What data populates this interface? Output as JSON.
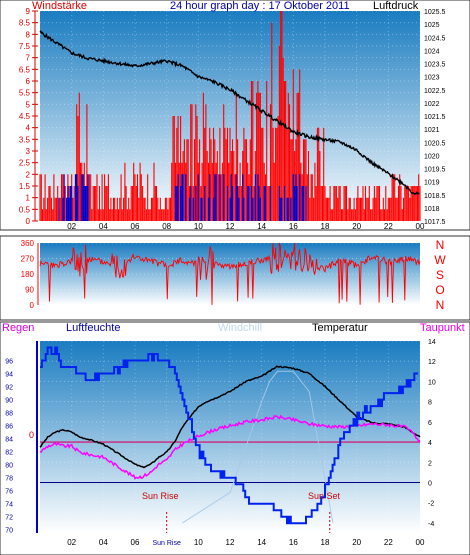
{
  "header": {
    "left_label": "Windstärke",
    "title": "24 hour graph day : 17 Oktober 2011",
    "right_label": "Luftdruck"
  },
  "middle": {
    "compass_labels": [
      "N",
      "W",
      "S",
      "O",
      "N"
    ]
  },
  "bottom_header": {
    "regen": "Regen",
    "luftfeuchte": "Luftfeuchte",
    "windchill": "Windchill",
    "temperatur": "Temperatur",
    "taupunkt": "Taupunkt"
  },
  "annotations": {
    "sun_rise": "Sun Rise",
    "sun_set": "Sun Set",
    "x_sun_rise_tick": "Sun Rise",
    "zero_left": "0"
  },
  "colors": {
    "wind_axis": "#e00000",
    "gust": "#ff0000",
    "wind_avg": "#0000cc",
    "pressure": "#000000",
    "direction": "#ff0000",
    "humidity": "#0022ee",
    "temperature": "#000000",
    "dewpoint": "#ff00ff",
    "windchill": "#a8c8e8",
    "bg_top": "#1a7cc0",
    "bg_bottom": "#ffffff",
    "title_blue": "#0000aa"
  },
  "chart_data": [
    {
      "type": "line",
      "title": "24 hour graph day : 17 Oktober 2011",
      "ylabel": "Windstärke",
      "ylabel_right": "Luftdruck",
      "x_ticks": [
        "02",
        "04",
        "06",
        "08",
        "10",
        "12",
        "14",
        "16",
        "18",
        "20",
        "22",
        "00"
      ],
      "y_ticks_left": [
        "0",
        "0.5",
        "1",
        "1.5",
        "2",
        "2.5",
        "3",
        "3.5",
        "4",
        "4.5",
        "5",
        "5.5",
        "6",
        "6.5",
        "7",
        "7.5",
        "8",
        "8.5",
        "9"
      ],
      "y_ticks_right": [
        "1017.5",
        "1018",
        "1018.5",
        "1019",
        "1019.5",
        "1020",
        "1020.5",
        "1021",
        "1021.5",
        "1022",
        "1022.5",
        "1023",
        "1023.5",
        "1024",
        "1024.5",
        "1025",
        "1025.5"
      ],
      "ylim_left": [
        0,
        9
      ],
      "ylim_right": [
        1017.5,
        1025.5
      ],
      "xlim": [
        0,
        24
      ],
      "series": [
        {
          "name": "Luftdruck",
          "axis": "right",
          "x": [
            0,
            1,
            2,
            3,
            4,
            5,
            6,
            7,
            8,
            9,
            10,
            11,
            12,
            13,
            14,
            15,
            16,
            17,
            18,
            19,
            20,
            21,
            22,
            23,
            23.5,
            24
          ],
          "values": [
            1024.7,
            1024.3,
            1023.9,
            1023.7,
            1023.6,
            1023.5,
            1023.4,
            1023.5,
            1023.6,
            1023.4,
            1023.0,
            1022.8,
            1022.5,
            1022.1,
            1021.7,
            1021.3,
            1020.9,
            1020.7,
            1020.6,
            1020.5,
            1020.2,
            1019.7,
            1019.3,
            1018.9,
            1018.6,
            1018.5
          ]
        }
      ]
    },
    {
      "type": "line",
      "ylabel": "",
      "y_ticks": [
        "0",
        "90",
        "180",
        "270",
        "360"
      ],
      "ylim": [
        0,
        360
      ],
      "xlim": [
        0,
        24
      ],
      "series": [
        {
          "x": [
            0,
            1,
            2,
            2.5,
            3,
            4,
            5,
            6,
            7,
            8,
            9,
            10,
            11,
            12,
            13,
            14,
            15,
            15.5,
            16,
            17,
            18,
            19,
            20,
            21,
            22,
            23,
            24
          ],
          "values": [
            240,
            230,
            250,
            225,
            270,
            250,
            240,
            280,
            255,
            230,
            260,
            240,
            250,
            220,
            245,
            260,
            290,
            250,
            310,
            240,
            210,
            260,
            230,
            280,
            250,
            270,
            250
          ]
        }
      ]
    },
    {
      "type": "line",
      "y_ticks_left": [
        "70",
        "72",
        "74",
        "76",
        "78",
        "80",
        "82",
        "84",
        "86",
        "88",
        "90",
        "92",
        "94",
        "96"
      ],
      "y_ticks_right": [
        "-4",
        "-2",
        "0",
        "2",
        "4",
        "6",
        "8",
        "10",
        "12",
        "14"
      ],
      "ylim_left": [
        69.5,
        99
      ],
      "ylim_right": [
        -5,
        14
      ],
      "x_ticks": [
        "02",
        "04",
        "06",
        "Sun Rise",
        "10",
        "12",
        "14",
        "16",
        "18",
        "20",
        "22",
        "00"
      ],
      "xlim": [
        0,
        24
      ],
      "series": [
        {
          "name": "Luftfeuchte",
          "axis": "left",
          "x": [
            0,
            0.5,
            1,
            1.5,
            2,
            2.5,
            3,
            4,
            5,
            6,
            6.5,
            7,
            7.5,
            8,
            8.5,
            9,
            9.5,
            10,
            10.5,
            11,
            11.5,
            12,
            12.5,
            13,
            13.5,
            14,
            14.5,
            15,
            15.5,
            16,
            16.5,
            17,
            17.5,
            18,
            18.5,
            19,
            20,
            21,
            22,
            23,
            23.5,
            24
          ],
          "values": [
            95,
            98,
            97,
            95,
            95,
            94,
            93,
            94,
            95,
            96,
            96,
            97,
            96,
            96,
            94,
            90,
            86,
            82,
            80,
            79,
            79,
            78,
            77,
            75,
            74,
            74,
            74,
            73,
            72,
            71,
            71,
            72,
            73,
            76,
            80,
            84,
            87,
            89,
            91,
            92,
            93,
            95
          ]
        },
        {
          "name": "Temperatur",
          "axis": "right",
          "x": [
            0,
            0.5,
            1,
            1.5,
            2,
            2.5,
            3,
            4,
            5,
            6,
            6.5,
            7,
            7.5,
            8,
            8.5,
            9,
            9.5,
            10,
            10.5,
            11,
            12,
            13,
            14,
            14.5,
            15,
            16,
            17,
            18,
            19,
            20,
            21,
            22,
            23,
            23.5,
            24
          ],
          "values": [
            3.5,
            4.5,
            5,
            5.2,
            5,
            4.5,
            4.3,
            3.8,
            2.8,
            1.8,
            1.5,
            1.8,
            2.5,
            3,
            4,
            5.5,
            6.5,
            7.5,
            8,
            8.3,
            9,
            10,
            10.5,
            11,
            11.5,
            11.3,
            10.8,
            9.5,
            8,
            6.5,
            5.9,
            5.8,
            5.5,
            5,
            4.5
          ]
        },
        {
          "name": "Taupunkt",
          "axis": "right",
          "x": [
            0,
            0.5,
            1,
            1.5,
            2,
            2.5,
            3,
            4,
            5,
            6,
            6.5,
            7,
            7.5,
            8,
            8.5,
            9,
            10,
            11,
            12,
            13,
            14,
            15,
            16,
            17,
            18,
            19,
            20,
            21,
            22,
            23,
            23.5,
            24
          ],
          "values": [
            3,
            3.6,
            3.8,
            3.6,
            3.6,
            3,
            2.8,
            2.5,
            1.5,
            0.5,
            0.6,
            1,
            1.8,
            2.2,
            3.2,
            3.8,
            4.6,
            5.2,
            5.6,
            6,
            6.2,
            6.5,
            6.2,
            5.8,
            5.6,
            5.5,
            5.6,
            5.8,
            5.7,
            5.5,
            5,
            4
          ]
        },
        {
          "name": "Windchill",
          "axis": "right",
          "x": [
            9,
            10,
            12,
            14,
            14.5,
            15,
            16,
            17,
            18.5
          ],
          "values": [
            -4,
            -3,
            -1,
            8,
            10,
            11,
            11,
            9,
            -4
          ]
        }
      ],
      "markers": [
        "Sun Rise",
        "Sun Set"
      ]
    }
  ]
}
